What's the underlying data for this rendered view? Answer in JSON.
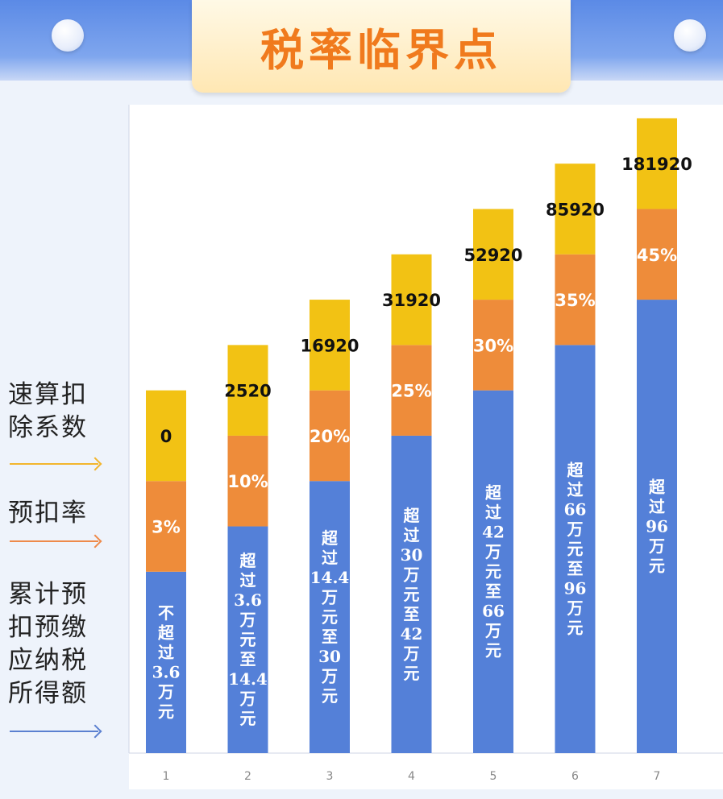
{
  "title": "税率临界点",
  "legend": [
    {
      "label": "速算扣除系数",
      "color": "#f2c214"
    },
    {
      "label": "预扣率",
      "color": "#ee8c3a"
    },
    {
      "label": "累计预扣预缴应纳税所得额",
      "color": "#5480d8"
    }
  ],
  "chart_data": {
    "type": "bar",
    "stacked": true,
    "categories": [
      "1",
      "2",
      "3",
      "4",
      "5",
      "6",
      "7"
    ],
    "series": [
      {
        "name": "累计预扣预缴应纳税所得额",
        "values": [
          4,
          5,
          6,
          7,
          8,
          9,
          10
        ],
        "labels": [
          "不超过3.6万元",
          "超过3.6万元至14.4万元",
          "超过14.4万元至30万元",
          "超过30万元至42万元",
          "超过42万元至66万元",
          "超过66万元至96万元",
          "超过96万元"
        ]
      },
      {
        "name": "预扣率",
        "values": [
          2,
          2,
          2,
          2,
          2,
          2,
          2
        ],
        "labels": [
          "3%",
          "10%",
          "20%",
          "25%",
          "30%",
          "35%",
          "45%"
        ]
      },
      {
        "name": "速算扣除系数",
        "values": [
          2,
          2,
          2,
          2,
          2,
          2,
          2
        ],
        "labels": [
          "0",
          "2520",
          "16920",
          "31920",
          "52920",
          "85920",
          "181920"
        ]
      }
    ],
    "colors": [
      "#5480d8",
      "#ee8c3a",
      "#f2c214"
    ],
    "ylim": [
      0,
      14.3
    ],
    "grid": false,
    "legend_position": "left"
  }
}
